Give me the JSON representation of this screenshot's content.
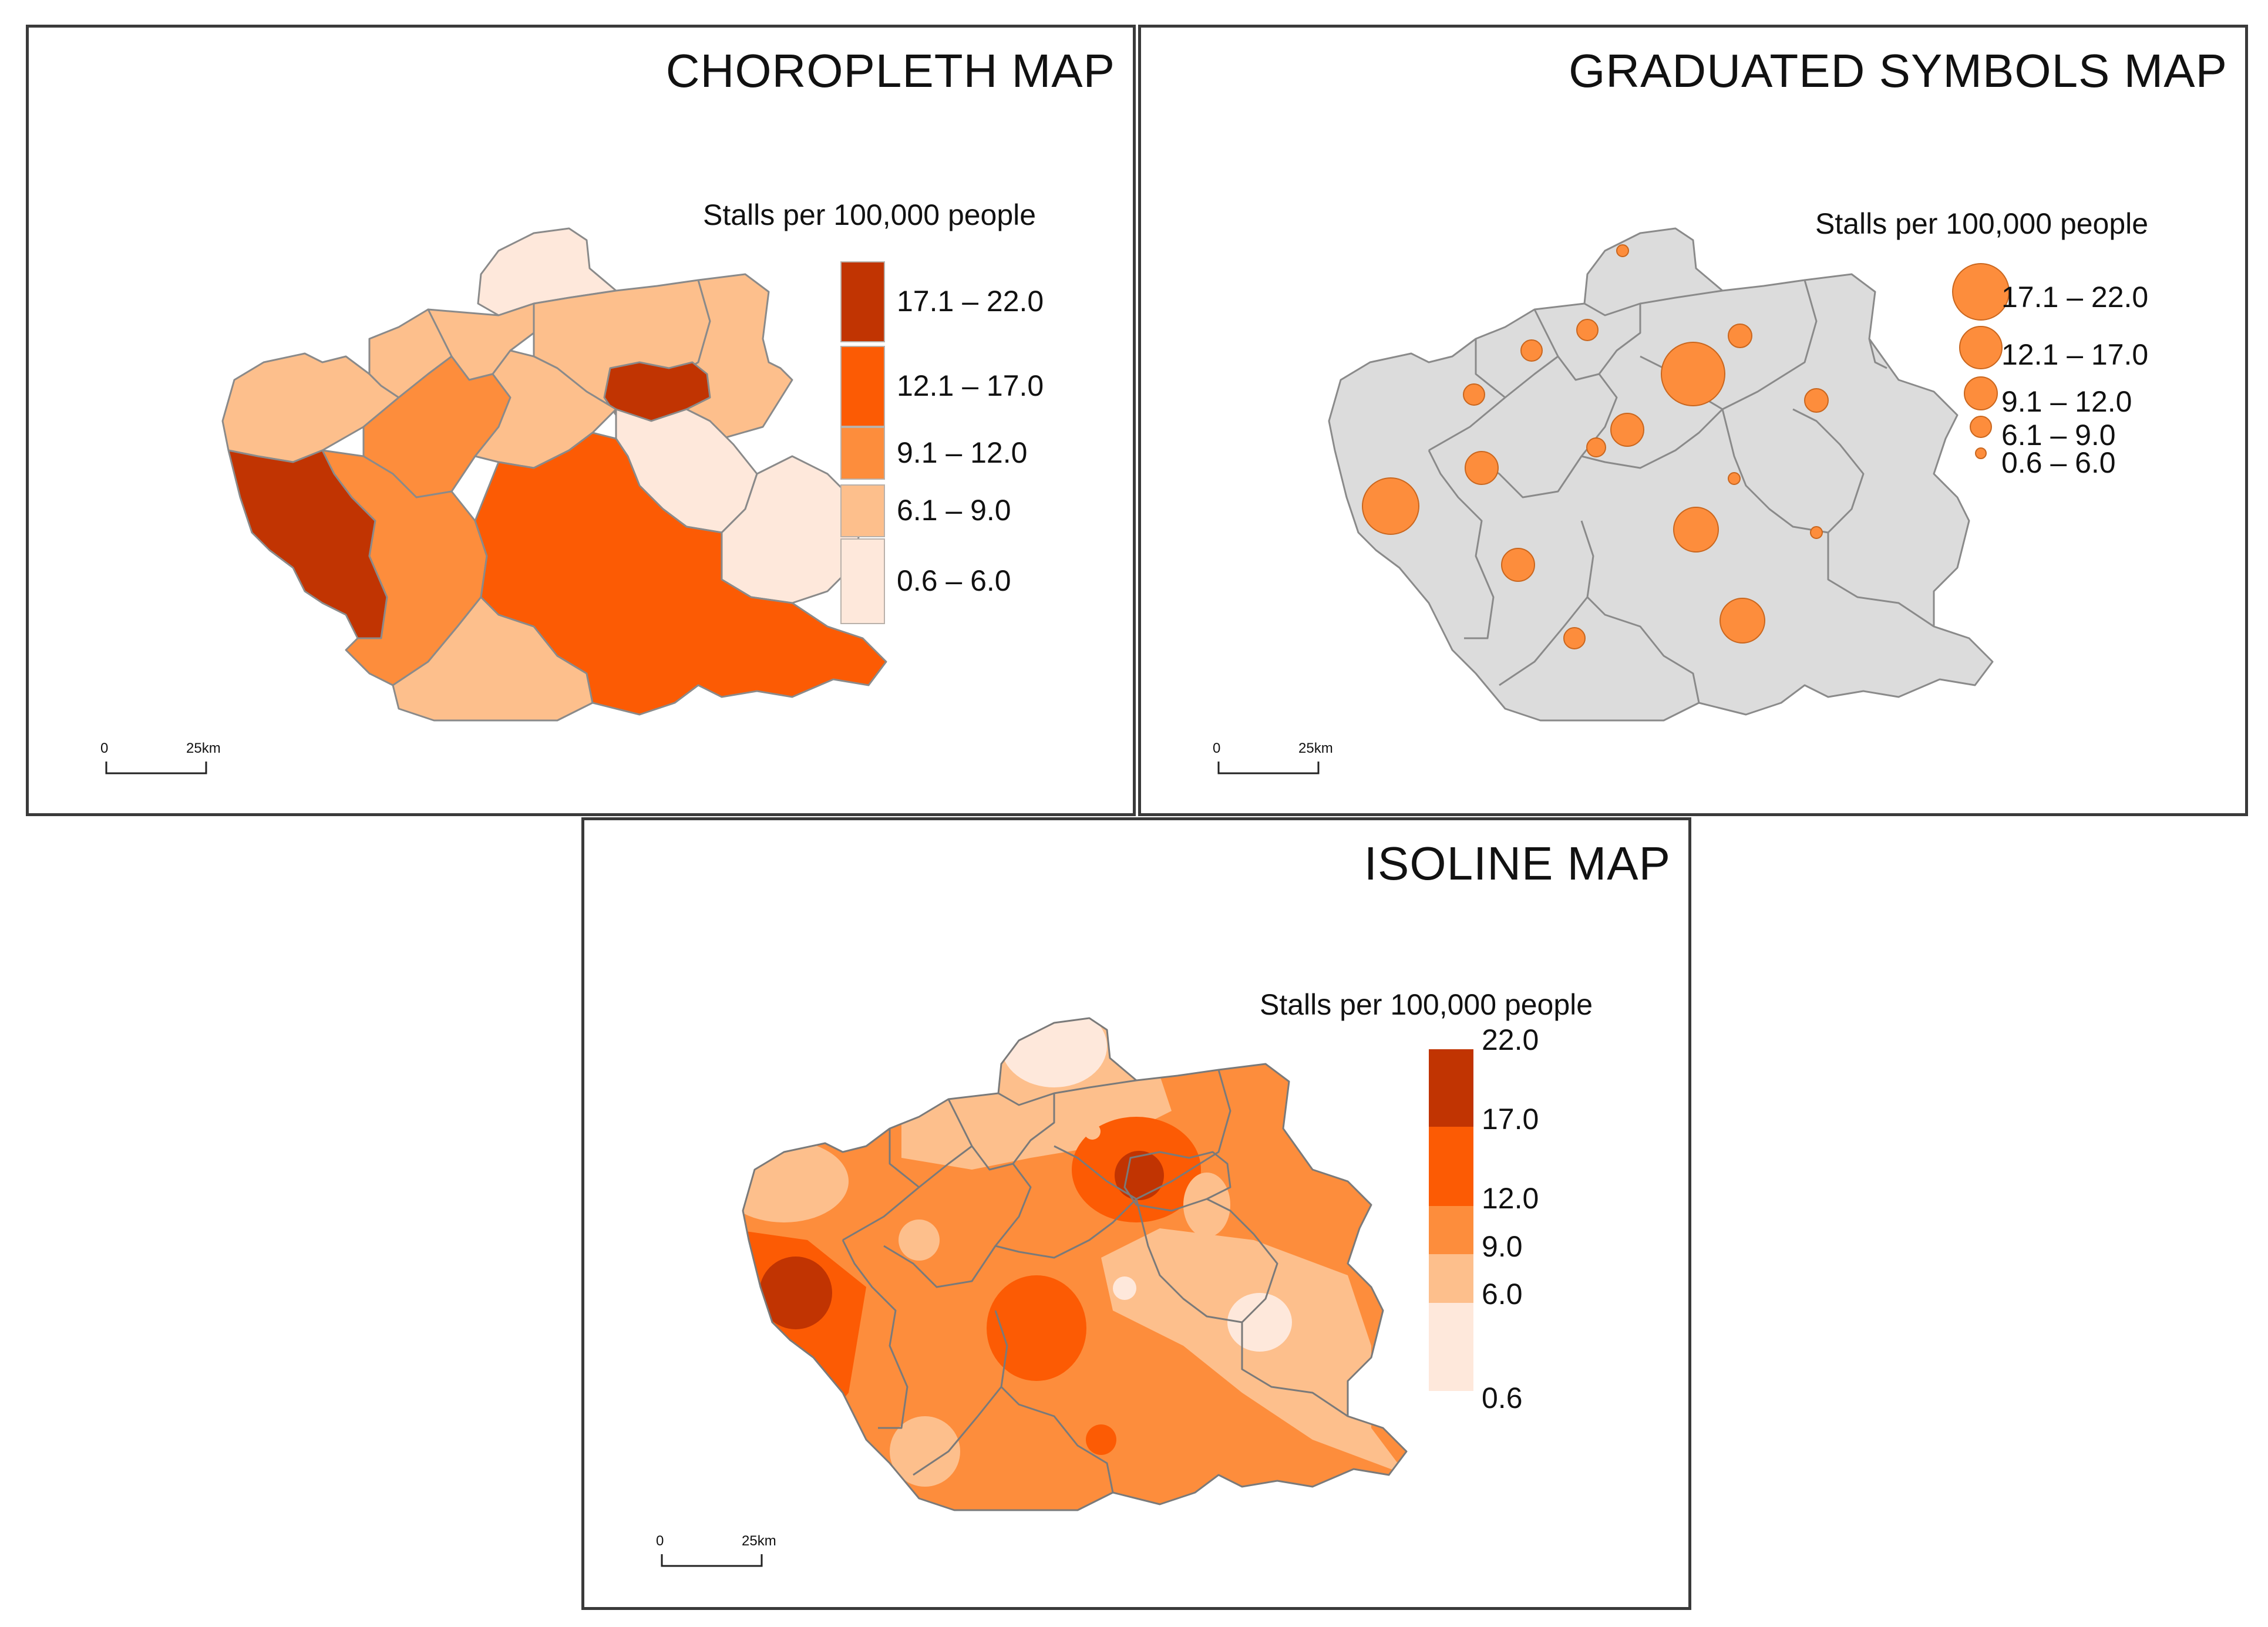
{
  "legend_title": "Stalls per 100,000 people",
  "scale": {
    "zero": "0",
    "distance": "25km"
  },
  "colors": {
    "c1": "#fee8db",
    "c2": "#fdbf8c",
    "c3": "#fd8d3c",
    "c4": "#fc5b04",
    "c5": "#c13402",
    "grey_fill": "#dcdcdc",
    "outline": "#8a8a8a",
    "symbol": "#fd8d3c"
  },
  "choropleth": {
    "title": "CHOROPLETH MAP",
    "classes": [
      {
        "label": "17.1 – 22.0",
        "color": "#c13402"
      },
      {
        "label": "12.1 – 17.0",
        "color": "#fc5b04"
      },
      {
        "label": "9.1 – 12.0",
        "color": "#fd8d3c"
      },
      {
        "label": "6.1 – 9.0",
        "color": "#fdbf8c"
      },
      {
        "label": "0.6 – 6.0",
        "color": "#fee8db"
      }
    ]
  },
  "graduated": {
    "title": "GRADUATED SYMBOLS MAP",
    "classes": [
      {
        "label": "17.1 – 22.0"
      },
      {
        "label": "12.1 – 17.0"
      },
      {
        "label": "9.1 – 12.0"
      },
      {
        "label": "6.1 – 9.0"
      },
      {
        "label": "0.6 – 6.0"
      }
    ]
  },
  "isoline": {
    "title": "ISOLINE MAP",
    "breaks": [
      "22.0",
      "17.0",
      "12.0",
      "9.0",
      "6.0",
      "0.6"
    ]
  }
}
